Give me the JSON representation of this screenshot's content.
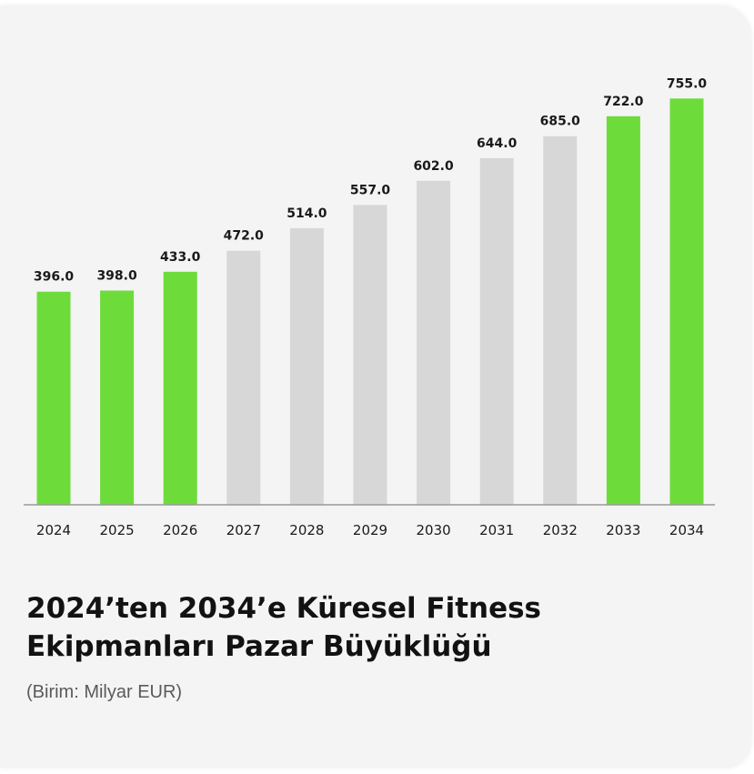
{
  "title_line1": "2024’ten 2034’e Küresel Fitness",
  "title_line2": "Ekipmanları Pazar Büyüklüğü",
  "subtitle": "(Birim: Milyar EUR)",
  "colors": {
    "highlight": "#6ddc3a",
    "regular": "#d7d7d7",
    "baseline": "#9a9a9a"
  },
  "chart_data": {
    "type": "bar",
    "categories": [
      "2024",
      "2025",
      "2026",
      "2027",
      "2028",
      "2029",
      "2030",
      "2031",
      "2032",
      "2033",
      "2034"
    ],
    "values": [
      396.0,
      398.0,
      433.0,
      472.0,
      514.0,
      557.0,
      602.0,
      644.0,
      685.0,
      722.0,
      755.0
    ],
    "value_labels": [
      "396.0",
      "398.0",
      "433.0",
      "472.0",
      "514.0",
      "557.0",
      "602.0",
      "644.0",
      "685.0",
      "722.0",
      "755.0"
    ],
    "highlighted": [
      true,
      true,
      true,
      false,
      false,
      false,
      false,
      false,
      false,
      true,
      true
    ],
    "title": "2024’ten 2034’e Küresel Fitness Ekipmanları Pazar Büyüklüğü",
    "unit": "(Birim: Milyar EUR)",
    "grid": false,
    "ylim": [
      0,
      830
    ]
  }
}
